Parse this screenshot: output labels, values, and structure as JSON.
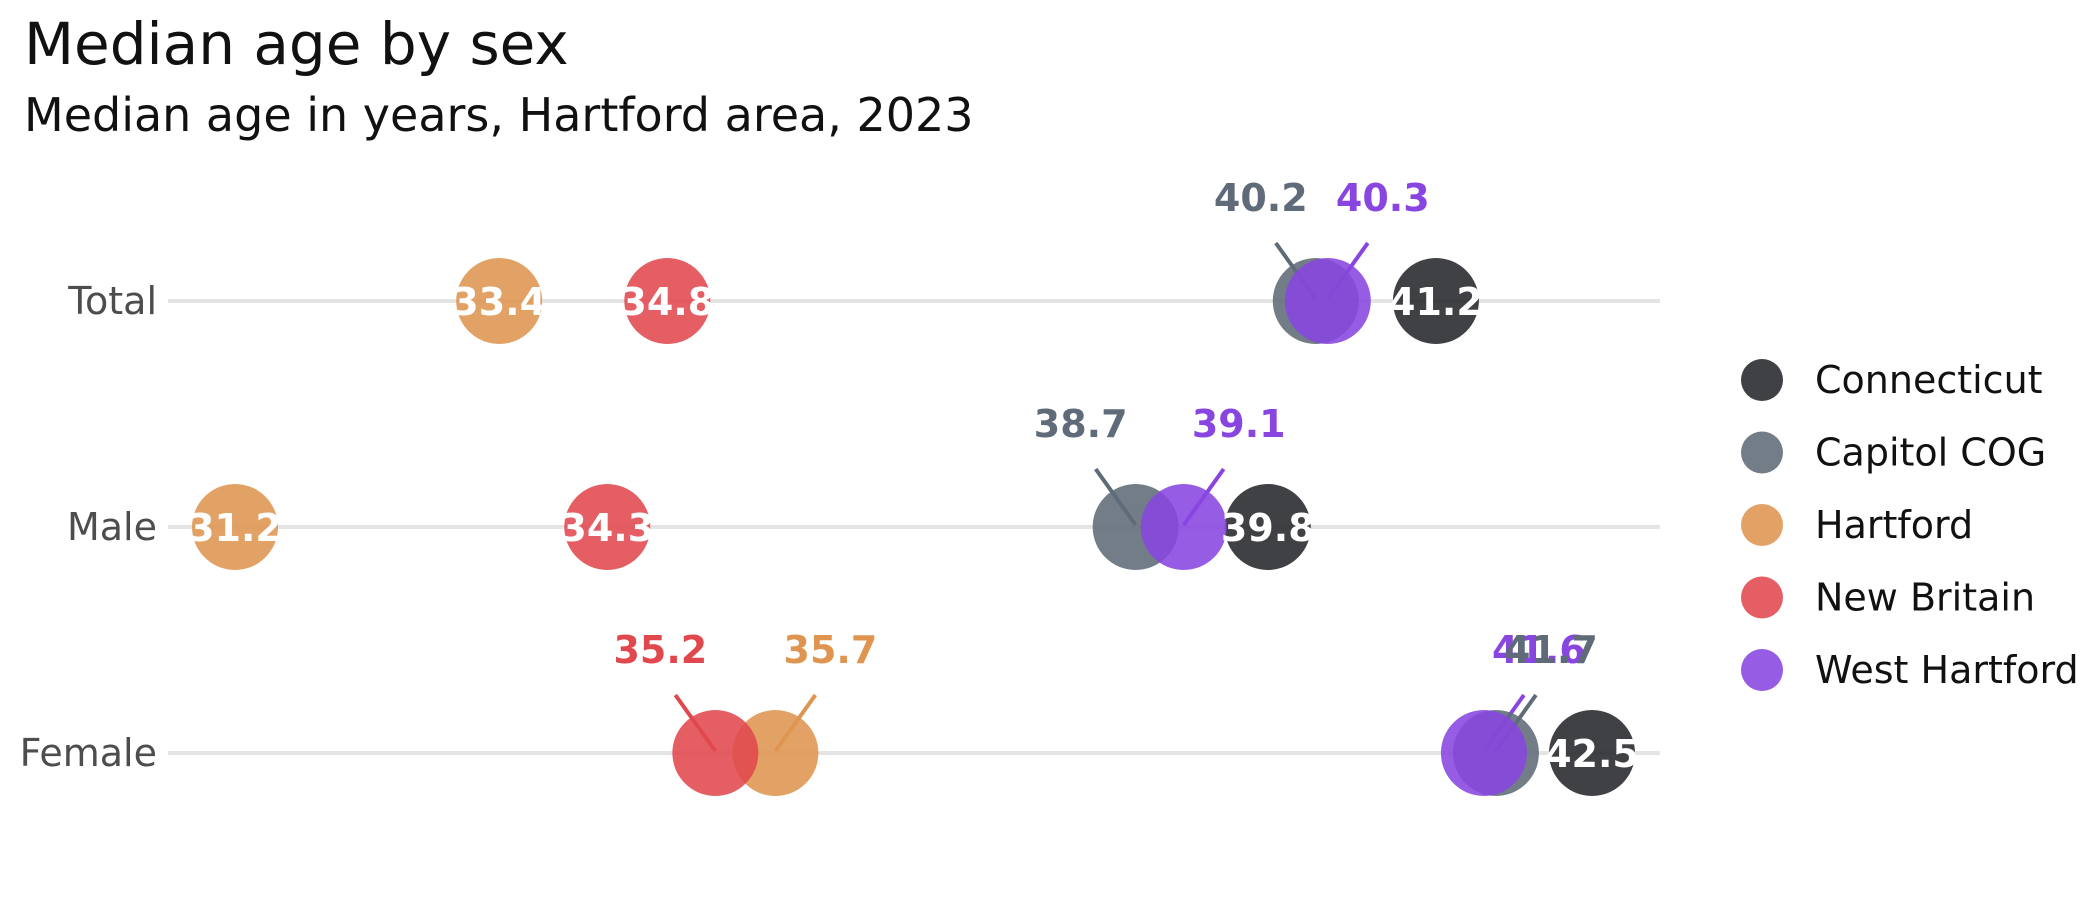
{
  "chart_data": {
    "type": "scatter",
    "title": "Median age by sex",
    "subtitle": "Median age in years, Hartford area, 2023",
    "categories": [
      "Total",
      "Male",
      "Female"
    ],
    "xlim": [
      30.5,
      43.1
    ],
    "grid": "horizontal lines per category",
    "legend_position": "right",
    "series": [
      {
        "name": "Connecticut",
        "color": "#26272b",
        "values": [
          41.2,
          39.8,
          42.5
        ]
      },
      {
        "name": "Capitol COG",
        "color": "#5f6b78",
        "values": [
          40.2,
          38.7,
          41.7
        ]
      },
      {
        "name": "Hartford",
        "color": "#df9550",
        "values": [
          33.4,
          31.2,
          35.7
        ]
      },
      {
        "name": "New Britain",
        "color": "#e0484e",
        "values": [
          34.8,
          34.3,
          35.2
        ]
      },
      {
        "name": "West Hartford",
        "color": "#8845e0",
        "values": [
          40.3,
          39.1,
          41.6
        ]
      }
    ],
    "callouts": [
      {
        "series": "Capitol COG",
        "category": "Total",
        "text": "40.2"
      },
      {
        "series": "West Hartford",
        "category": "Total",
        "text": "40.3"
      },
      {
        "series": "Capitol COG",
        "category": "Male",
        "text": "38.7"
      },
      {
        "series": "West Hartford",
        "category": "Male",
        "text": "39.1"
      },
      {
        "series": "New Britain",
        "category": "Female",
        "text": "35.2"
      },
      {
        "series": "Hartford",
        "category": "Female",
        "text": "35.7"
      },
      {
        "series": "West Hartford",
        "category": "Female",
        "text": "41.6"
      },
      {
        "series": "Capitol COG",
        "category": "Female",
        "text": "41.7"
      }
    ],
    "inline_labels": [
      {
        "series": "Hartford",
        "category": "Total",
        "text": "33.4"
      },
      {
        "series": "New Britain",
        "category": "Total",
        "text": "34.8"
      },
      {
        "series": "Connecticut",
        "category": "Total",
        "text": "41.2"
      },
      {
        "series": "Hartford",
        "category": "Male",
        "text": "31.2"
      },
      {
        "series": "New Britain",
        "category": "Male",
        "text": "34.3"
      },
      {
        "series": "Connecticut",
        "category": "Male",
        "text": "39.8"
      },
      {
        "series": "Connecticut",
        "category": "Female",
        "text": "42.5"
      }
    ]
  }
}
